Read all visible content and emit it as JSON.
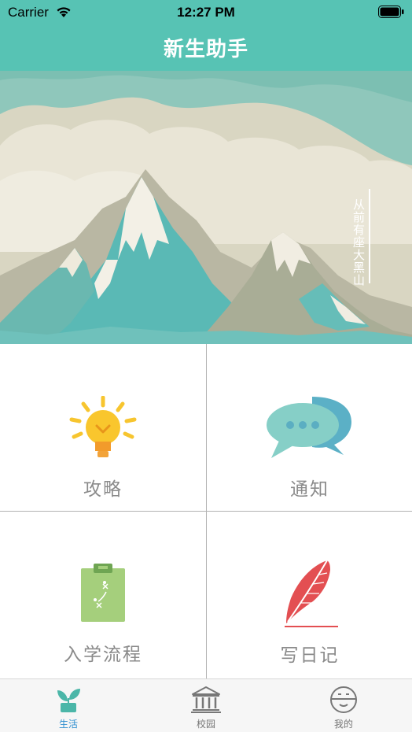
{
  "status_bar": {
    "carrier": "Carrier",
    "time": "12:27 PM"
  },
  "nav": {
    "title": "新生助手"
  },
  "banner": {
    "caption": "从前有座大黑山"
  },
  "grid": [
    {
      "label": "攻略",
      "icon": "lightbulb-icon"
    },
    {
      "label": "通知",
      "icon": "chat-bubbles-icon"
    },
    {
      "label": "入学流程",
      "icon": "clipboard-icon"
    },
    {
      "label": "写日记",
      "icon": "quill-pen-icon"
    }
  ],
  "tabbar": [
    {
      "label": "生活",
      "icon": "sprout-icon",
      "active": true
    },
    {
      "label": "校园",
      "icon": "campus-building-icon",
      "active": false
    },
    {
      "label": "我的",
      "icon": "profile-face-icon",
      "active": false
    }
  ],
  "colors": {
    "header": "#57c3b4",
    "tab_active": "#2f8fd0"
  }
}
